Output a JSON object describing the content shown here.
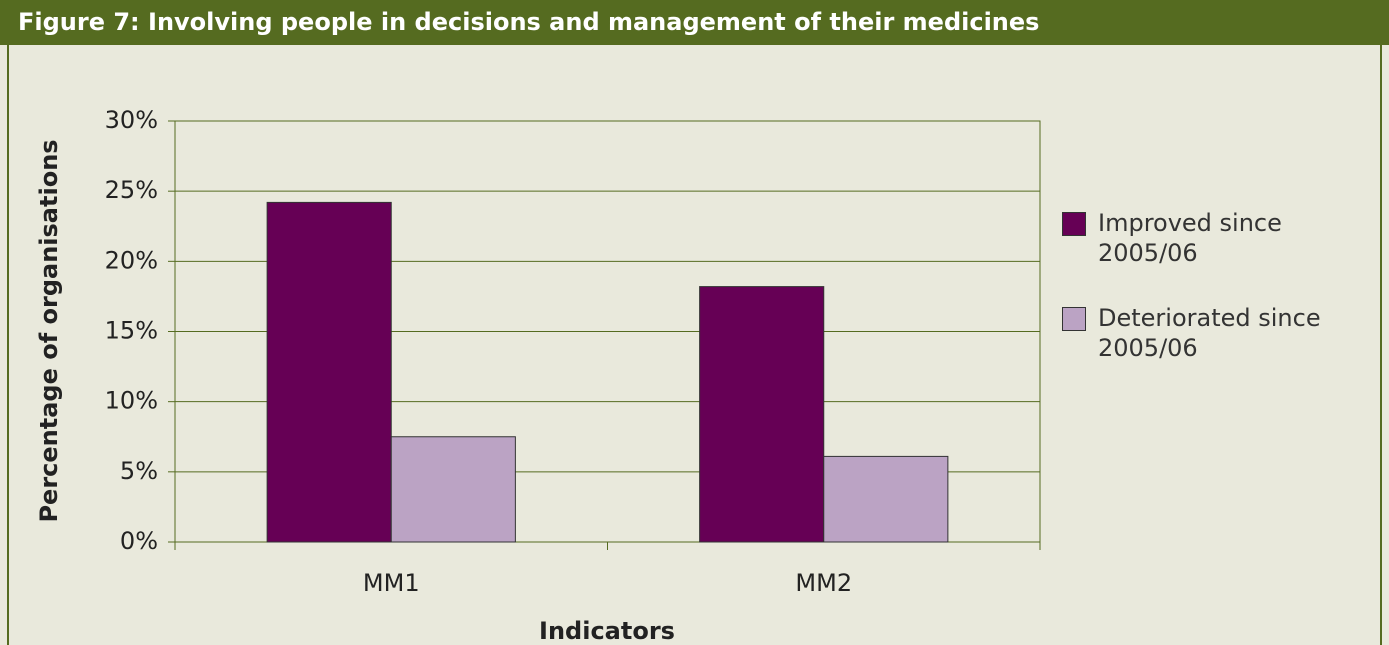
{
  "chart_data": {
    "type": "bar",
    "title": "Figure 7: Involving people in decisions and management of their medicines",
    "x_label": "Indicators",
    "y_label": "Percentage of organisations",
    "categories": [
      "MM1",
      "MM2"
    ],
    "series": [
      {
        "name": "Improved since 2005/06",
        "color": "#660055",
        "values": [
          24.2,
          18.2
        ]
      },
      {
        "name": "Deteriorated since 2005/06",
        "color": "#bba3c4",
        "values": [
          7.5,
          6.1
        ]
      }
    ],
    "ylim": [
      0,
      30
    ],
    "yticks": [
      {
        "value": 0,
        "label": "0%"
      },
      {
        "value": 5,
        "label": "5%"
      },
      {
        "value": 10,
        "label": "10%"
      },
      {
        "value": 15,
        "label": "15%"
      },
      {
        "value": 20,
        "label": "20%"
      },
      {
        "value": 25,
        "label": "25%"
      },
      {
        "value": 30,
        "label": "30%"
      }
    ],
    "grid": true,
    "legend": "right"
  }
}
